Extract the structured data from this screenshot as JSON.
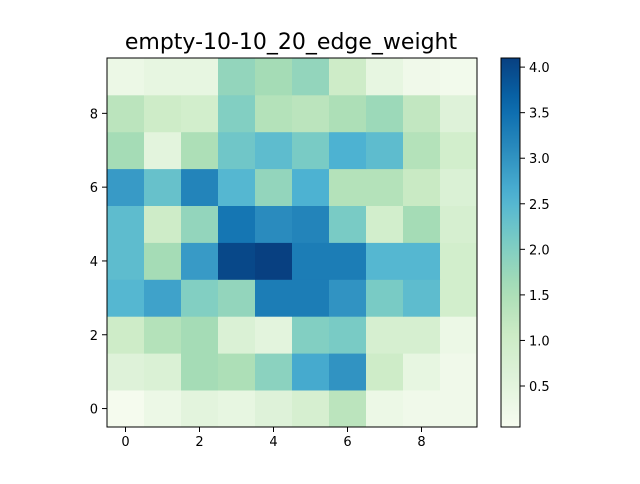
{
  "chart_data": {
    "type": "heatmap",
    "title": "empty-10-10_20_edge_weight",
    "xlabel": "",
    "ylabel": "",
    "x_ticks": [
      0,
      2,
      4,
      6,
      8
    ],
    "y_ticks": [
      0,
      2,
      4,
      6,
      8
    ],
    "xlim": [
      -0.5,
      9.5
    ],
    "ylim": [
      -0.5,
      9.5
    ],
    "origin": "lower",
    "colormap": "GnBu",
    "color_range": [
      0.05,
      4.1
    ],
    "colorbar_ticks": [
      0.5,
      1.0,
      1.5,
      2.0,
      2.5,
      3.0,
      3.5,
      4.0
    ],
    "colorbar_tick_labels": [
      "0.5",
      "1.0",
      "1.5",
      "2.0",
      "2.5",
      "3.0",
      "3.5",
      "4.0"
    ],
    "grid": false,
    "rows_bottom_to_top": [
      [
        0.1,
        0.3,
        0.5,
        0.4,
        0.6,
        0.8,
        1.3,
        0.3,
        0.2,
        0.2
      ],
      [
        0.6,
        0.7,
        1.6,
        1.5,
        1.9,
        2.7,
        3.0,
        1.0,
        0.4,
        0.2
      ],
      [
        1.0,
        1.4,
        1.6,
        0.7,
        0.5,
        2.0,
        2.1,
        0.8,
        0.8,
        0.3
      ],
      [
        2.5,
        2.8,
        2.0,
        1.8,
        3.3,
        3.3,
        3.0,
        2.1,
        2.4,
        0.9
      ],
      [
        2.4,
        1.6,
        2.9,
        4.0,
        4.1,
        3.3,
        3.3,
        2.5,
        2.5,
        0.9
      ],
      [
        2.4,
        1.0,
        1.8,
        3.4,
        3.1,
        3.2,
        2.1,
        0.9,
        1.6,
        0.8
      ],
      [
        2.9,
        2.3,
        3.2,
        2.5,
        1.8,
        2.6,
        1.4,
        1.4,
        1.1,
        0.7
      ],
      [
        1.6,
        0.5,
        1.5,
        2.2,
        2.4,
        2.1,
        2.6,
        2.4,
        1.4,
        0.9
      ],
      [
        1.3,
        1.0,
        0.9,
        2.0,
        1.4,
        1.3,
        1.5,
        1.7,
        1.2,
        0.6
      ],
      [
        0.3,
        0.4,
        0.4,
        1.8,
        1.6,
        1.8,
        1.0,
        0.4,
        0.2,
        0.15
      ]
    ]
  }
}
